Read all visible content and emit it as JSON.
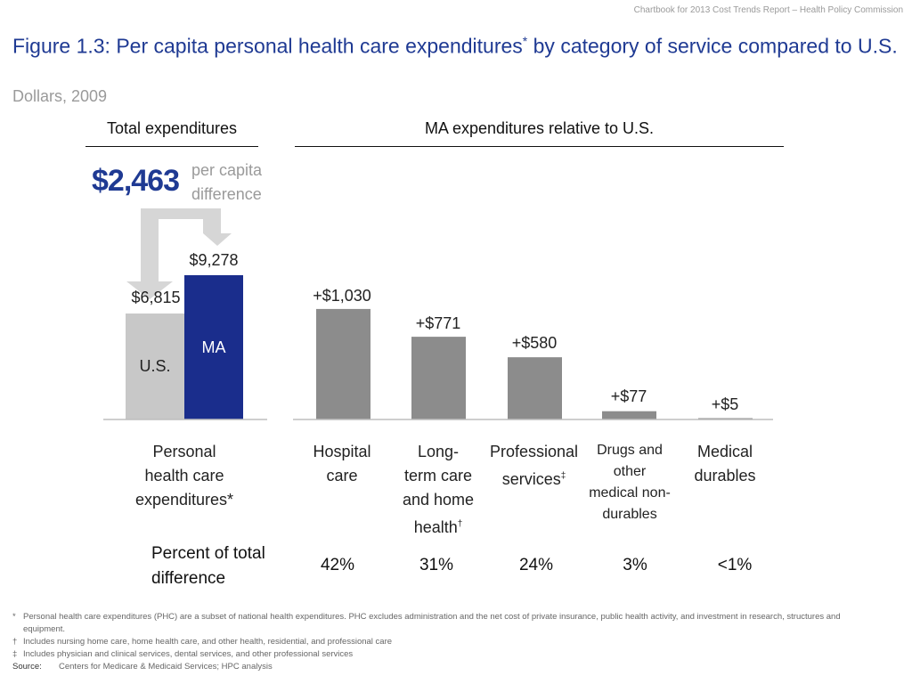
{
  "header": {
    "source_line": "Chartbook for 2013 Cost Trends Report – Health Policy Commission"
  },
  "title": {
    "text": "Figure 1.3: Per capita personal health care expenditures",
    "mark": "*",
    "text2": " by category of service compared to U.S."
  },
  "subtitle": "Dollars, 2009",
  "panels": {
    "left_header": "Total expenditures",
    "right_header": "MA expenditures relative to U.S."
  },
  "difference": {
    "value": "$2,463",
    "label": "per capita difference"
  },
  "chart_data": [
    {
      "type": "bar",
      "title": "Total expenditures",
      "categories": [
        "U.S.",
        "MA"
      ],
      "values": [
        6815,
        9278
      ],
      "value_labels": [
        "$6,815",
        "$9,278"
      ],
      "colors": [
        "#c8c8c8",
        "#1a2d8c"
      ],
      "ylim": [
        0,
        9278
      ],
      "xlabel": "Personal health care expenditures*",
      "grid": false
    },
    {
      "type": "bar",
      "title": "MA expenditures relative to U.S.",
      "categories": [
        "Hospital care",
        "Long-term care and home health†",
        "Professional services‡",
        "Drugs and other medical non-durables",
        "Medical durables"
      ],
      "values": [
        1030,
        771,
        580,
        77,
        5
      ],
      "value_labels": [
        "+$1,030",
        "+$771",
        "+$580",
        "+$77",
        "+$5"
      ],
      "percent_of_total_difference": [
        "42%",
        "31%",
        "24%",
        "3%",
        "<1%"
      ],
      "color": "#8c8c8c",
      "grid": false
    }
  ],
  "left_category": {
    "line1": "Personal",
    "line2": "health care",
    "line3": "expenditures*"
  },
  "categories": [
    {
      "line1": "Hospital",
      "line2": "care"
    },
    {
      "line1": "Long-",
      "line2": "term care",
      "line3": "and home",
      "line4": "health",
      "mark": "†"
    },
    {
      "line1": "Professional",
      "line2": "services",
      "mark": "‡"
    },
    {
      "line1": "Drugs and",
      "line2": "other",
      "line3": "medical non-",
      "line4": "durables"
    },
    {
      "line1": "Medical",
      "line2": "durables"
    }
  ],
  "percent_row": {
    "label_line1": "Percent of total",
    "label_line2": "difference"
  },
  "footnotes": [
    {
      "mark": "*",
      "text": "Personal health care expenditures (PHC) are a subset of national health expenditures. PHC excludes administration and the net cost of private insurance, public health activity, and investment in research, structures and equipment."
    },
    {
      "mark": "†",
      "text": "Includes nursing home care, home health care, and other health, residential, and professional care"
    },
    {
      "mark": "‡",
      "text": "Includes physician and clinical services, dental services, and other professional services"
    }
  ],
  "source": {
    "label": "Source:",
    "text": "Centers for Medicare & Medicaid Services; HPC analysis"
  },
  "colors": {
    "title": "#1f3a93",
    "ma_bar": "#1a2d8c",
    "us_bar": "#c8c8c8",
    "category_bar": "#8c8c8c",
    "arrow": "#d6d6d6",
    "muted_text": "#9a9a9a"
  }
}
